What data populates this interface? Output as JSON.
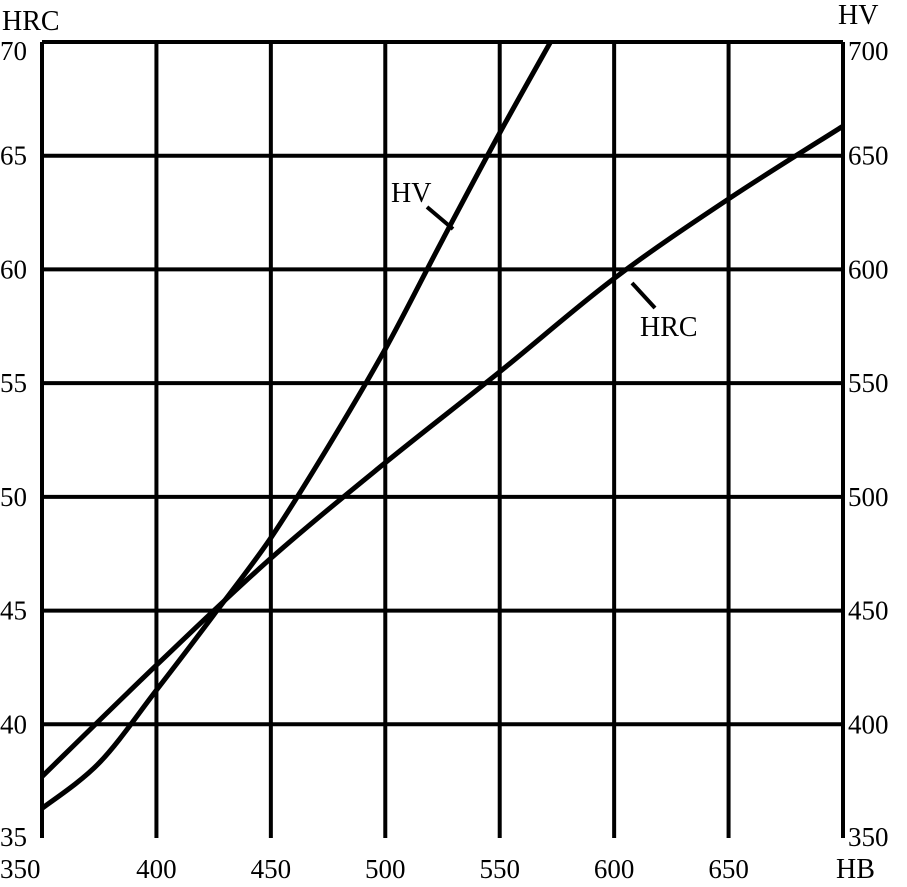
{
  "chart_data": {
    "type": "line",
    "title": "",
    "xlabel": "HB",
    "ylabel_left": "HRC",
    "ylabel_right": "HV",
    "xlim": [
      350,
      650
    ],
    "x_axis_end": 700,
    "ylim_left": [
      35,
      70
    ],
    "ylim_right": [
      350,
      700
    ],
    "x_ticks": [
      "350",
      "400",
      "450",
      "500",
      "550",
      "600",
      "650"
    ],
    "y_left_ticks": [
      "35",
      "40",
      "45",
      "50",
      "55",
      "60",
      "65",
      "70"
    ],
    "y_right_ticks": [
      "350",
      "400",
      "450",
      "500",
      "550",
      "600",
      "650",
      "700"
    ],
    "grid": true,
    "colors": {
      "line": "#000000",
      "grid": "#000000",
      "background": "#ffffff"
    },
    "series": [
      {
        "name": "HRC",
        "axis": "left",
        "x": [
          350,
          400,
          450,
          500,
          550,
          600,
          650,
          700
        ],
        "y": [
          37.7,
          42.6,
          47.3,
          51.5,
          55.5,
          59.6,
          63.1,
          66.3
        ]
      },
      {
        "name": "HV",
        "axis": "right",
        "x": [
          350,
          375,
          400,
          425,
          450,
          475,
          500,
          525,
          550,
          575
        ],
        "y": [
          363,
          383,
          415,
          448,
          482,
          522,
          565,
          613,
          660,
          705
        ]
      }
    ]
  }
}
